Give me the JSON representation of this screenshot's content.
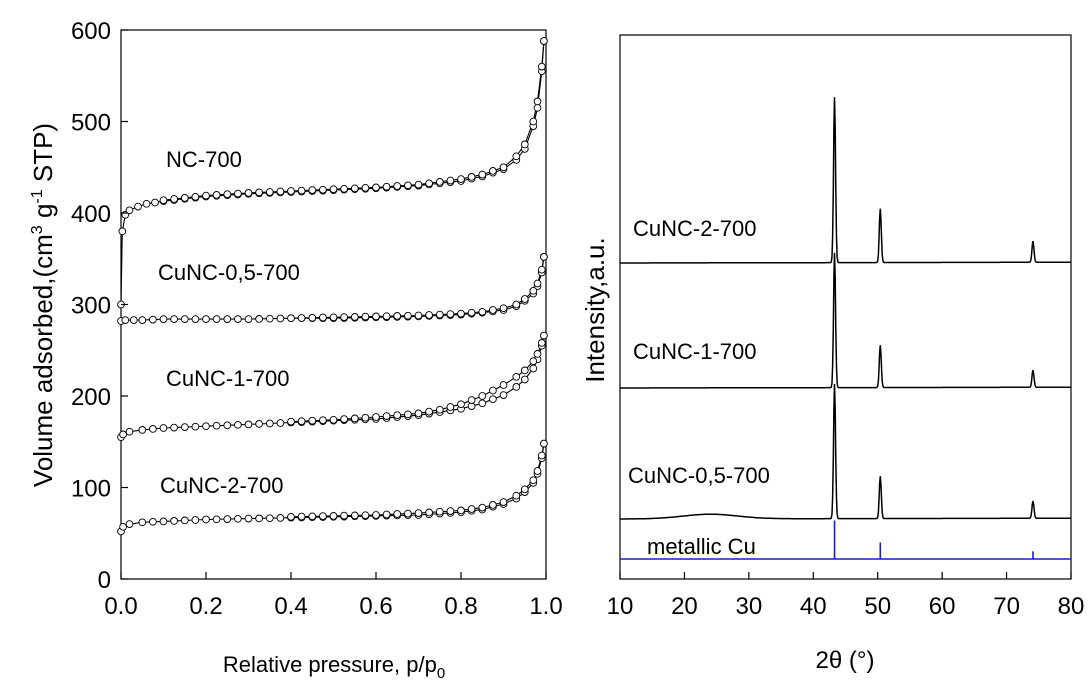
{
  "colors": {
    "axis": "#000000",
    "curve": "#000000",
    "reference": "#1a1ad6",
    "marker_fill": "#ffffff"
  },
  "chart_data": [
    {
      "type": "line",
      "panel": "left",
      "title": "",
      "xlabel": "Relative pressure, p/p",
      "xlabel_sub": "0",
      "ylabel_parts": [
        "Volume adsorbed,(cm",
        "3",
        " g",
        "-1",
        " STP)"
      ],
      "xlim": [
        0.0,
        1.0
      ],
      "ylim": [
        0,
        600
      ],
      "xticks": [
        "0.0",
        "0.2",
        "0.4",
        "0.6",
        "0.8",
        "1.0"
      ],
      "yticks": [
        "0",
        "100",
        "200",
        "300",
        "400",
        "500",
        "600"
      ],
      "markers": "open-circle",
      "grid": false,
      "series": [
        {
          "name": "NC-700",
          "adsorption": {
            "x": [
              0.0,
              0.003,
              0.01,
              0.02,
              0.04,
              0.06,
              0.1,
              0.2,
              0.3,
              0.4,
              0.5,
              0.6,
              0.7,
              0.8,
              0.85,
              0.9,
              0.93,
              0.95,
              0.97,
              0.98,
              0.99,
              0.995
            ],
            "y": [
              300,
              380,
              398,
              403,
              407,
              410,
              413,
              418,
              421,
              423,
              425,
              427,
              430,
              435,
              440,
              448,
              458,
              470,
              495,
              515,
              555,
              588
            ]
          },
          "desorption": {
            "x": [
              0.995,
              0.99,
              0.98,
              0.97,
              0.95,
              0.93,
              0.9,
              0.85,
              0.8,
              0.7,
              0.6,
              0.5,
              0.4,
              0.3,
              0.2,
              0.1
            ],
            "y": [
              588,
              560,
              522,
              500,
              475,
              462,
              450,
              442,
              437,
              431,
              428,
              426,
              424,
              422,
              419,
              414
            ]
          }
        },
        {
          "name": "CuNC-0,5-700",
          "adsorption": {
            "x": [
              0.0,
              0.01,
              0.05,
              0.1,
              0.2,
              0.3,
              0.4,
              0.5,
              0.6,
              0.7,
              0.8,
              0.85,
              0.9,
              0.93,
              0.95,
              0.97,
              0.98,
              0.99,
              0.995
            ],
            "y": [
              282,
              283,
              283,
              284,
              284,
              284,
              285,
              285,
              286,
              287,
              289,
              291,
              294,
              298,
              304,
              312,
              320,
              335,
              352
            ]
          },
          "desorption": {
            "x": [
              0.995,
              0.99,
              0.98,
              0.97,
              0.95,
              0.93,
              0.9,
              0.85,
              0.8,
              0.7,
              0.6,
              0.5,
              0.4
            ],
            "y": [
              352,
              338,
              323,
              315,
              306,
              300,
              296,
              292,
              290,
              288,
              287,
              286,
              285
            ]
          }
        },
        {
          "name": "CuNC-1-700",
          "adsorption": {
            "x": [
              0.0,
              0.005,
              0.02,
              0.05,
              0.1,
              0.2,
              0.3,
              0.4,
              0.5,
              0.6,
              0.7,
              0.8,
              0.85,
              0.9,
              0.93,
              0.95,
              0.97,
              0.98,
              0.99,
              0.995
            ],
            "y": [
              155,
              158,
              161,
              163,
              165,
              167,
              169,
              171,
              173,
              175,
              179,
              186,
              192,
              201,
              210,
              218,
              230,
              240,
              255,
              266
            ]
          },
          "desorption": {
            "x": [
              0.995,
              0.99,
              0.98,
              0.97,
              0.95,
              0.93,
              0.9,
              0.85,
              0.8,
              0.75,
              0.7,
              0.6,
              0.5,
              0.4
            ],
            "y": [
              266,
              258,
              246,
              238,
              228,
              221,
              212,
              200,
              191,
              185,
              181,
              177,
              174,
              172
            ]
          }
        },
        {
          "name": "CuNC-2-700",
          "adsorption": {
            "x": [
              0.0,
              0.005,
              0.02,
              0.05,
              0.1,
              0.2,
              0.3,
              0.4,
              0.5,
              0.6,
              0.7,
              0.8,
              0.85,
              0.9,
              0.93,
              0.95,
              0.97,
              0.98,
              0.99,
              0.995
            ],
            "y": [
              52,
              57,
              60,
              62,
              63,
              65,
              66,
              67,
              68,
              69,
              70,
              73,
              76,
              82,
              88,
              95,
              105,
              115,
              132,
              148
            ]
          },
          "desorption": {
            "x": [
              0.995,
              0.99,
              0.98,
              0.97,
              0.95,
              0.93,
              0.9,
              0.85,
              0.8,
              0.7,
              0.6,
              0.5,
              0.4
            ],
            "y": [
              148,
              135,
              118,
              108,
              98,
              91,
              84,
              78,
              75,
              72,
              70,
              69,
              68
            ]
          }
        }
      ]
    },
    {
      "type": "line",
      "panel": "right",
      "title": "",
      "xlabel": "2θ (°)",
      "ylabel": "Intensity,a.u.",
      "xlim": [
        10,
        80
      ],
      "xticks": [
        "10",
        "20",
        "30",
        "40",
        "50",
        "60",
        "70",
        "80"
      ],
      "yticks": [],
      "grid": false,
      "series": [
        {
          "name": "CuNC-2-700",
          "offset": 3,
          "broad_hump": 0.0,
          "peaks": [
            {
              "x": 43.3,
              "h": 4.3
            },
            {
              "x": 50.4,
              "h": 1.4
            },
            {
              "x": 74.1,
              "h": 0.55
            }
          ]
        },
        {
          "name": "CuNC-1-700",
          "offset": 2,
          "broad_hump": 0.0,
          "peaks": [
            {
              "x": 43.3,
              "h": 3.5
            },
            {
              "x": 50.4,
              "h": 1.1
            },
            {
              "x": 74.1,
              "h": 0.45
            }
          ]
        },
        {
          "name": "CuNC-0,5-700",
          "offset": 1,
          "broad_hump": 0.12,
          "peaks": [
            {
              "x": 43.3,
              "h": 3.5
            },
            {
              "x": 50.4,
              "h": 1.1
            },
            {
              "x": 74.1,
              "h": 0.45
            }
          ]
        },
        {
          "name": "metallic Cu",
          "offset": 0,
          "reference": true,
          "sticks": [
            {
              "x": 43.3,
              "h": 1.0
            },
            {
              "x": 50.4,
              "h": 0.43
            },
            {
              "x": 74.1,
              "h": 0.2
            }
          ]
        }
      ]
    }
  ]
}
